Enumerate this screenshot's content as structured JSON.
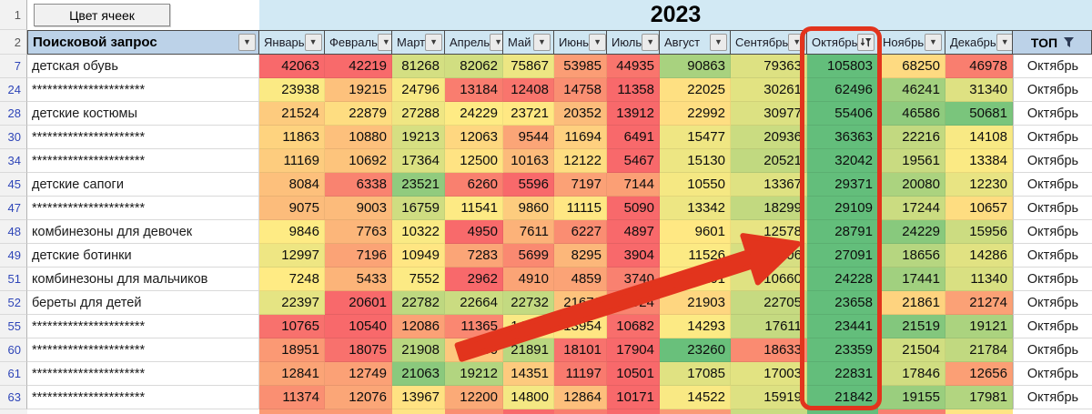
{
  "toolbar": {
    "button_label": "Цвет ячеек"
  },
  "banner": {
    "year": "2023"
  },
  "gutter": {
    "row1": "1",
    "row2": "2"
  },
  "table": {
    "query_header": "Поисковой запрос",
    "months": [
      "Январь",
      "Февраль",
      "Март",
      "Апрель",
      "Май",
      "Июнь",
      "Июль",
      "Август",
      "Сентябрь",
      "Октябрь",
      "Ноябрь",
      "Декабрь"
    ],
    "top_header": "ТОП",
    "filtered_column": "Октябрь",
    "rows": [
      {
        "num": "7",
        "query": "детская обувь",
        "values": [
          42063,
          42219,
          81268,
          82062,
          75867,
          53985,
          44935,
          90863,
          79363,
          105803,
          68250,
          46978
        ],
        "top": "Октябрь"
      },
      {
        "num": "24",
        "query": "**********************",
        "values": [
          23938,
          19215,
          24796,
          13184,
          12408,
          14758,
          11358,
          22025,
          30261,
          62496,
          46241,
          31340
        ],
        "top": "Октябрь"
      },
      {
        "num": "28",
        "query": "детские костюмы",
        "values": [
          21524,
          22879,
          27288,
          24229,
          23721,
          20352,
          13912,
          22992,
          30977,
          55406,
          46586,
          50681
        ],
        "top": "Октябрь"
      },
      {
        "num": "30",
        "query": "**********************",
        "values": [
          11863,
          10880,
          19213,
          12063,
          9544,
          11694,
          6491,
          15477,
          20936,
          36363,
          22216,
          14108
        ],
        "top": "Октябрь"
      },
      {
        "num": "34",
        "query": "**********************",
        "values": [
          11169,
          10692,
          17364,
          12500,
          10163,
          12122,
          5467,
          15130,
          20521,
          32042,
          19561,
          13384
        ],
        "top": "Октябрь"
      },
      {
        "num": "45",
        "query": "детские сапоги",
        "values": [
          8084,
          6338,
          23521,
          6260,
          5596,
          7197,
          7144,
          10550,
          13367,
          29371,
          20080,
          12230
        ],
        "top": "Октябрь"
      },
      {
        "num": "47",
        "query": "**********************",
        "values": [
          9075,
          9003,
          16759,
          11541,
          9860,
          11115,
          5090,
          13342,
          18299,
          29109,
          17244,
          10657
        ],
        "top": "Октябрь"
      },
      {
        "num": "48",
        "query": "комбинезоны для девочек",
        "values": [
          9846,
          7763,
          10322,
          4950,
          7611,
          6227,
          4897,
          9601,
          12578,
          28791,
          24229,
          15956
        ],
        "top": "Октябрь"
      },
      {
        "num": "49",
        "query": "детские ботинки",
        "values": [
          12997,
          7196,
          10949,
          7283,
          5699,
          8295,
          3904,
          11526,
          15306,
          27091,
          18656,
          14286
        ],
        "top": "Октябрь"
      },
      {
        "num": "51",
        "query": "комбинезоны для мальчиков",
        "values": [
          7248,
          5433,
          7552,
          2962,
          4910,
          4859,
          3740,
          7201,
          10660,
          24228,
          17441,
          11340
        ],
        "top": "Октябрь"
      },
      {
        "num": "52",
        "query": "береты для детей",
        "values": [
          22397,
          20601,
          22782,
          22664,
          22732,
          21670,
          20924,
          21903,
          22705,
          23658,
          21861,
          21274
        ],
        "top": "Октябрь"
      },
      {
        "num": "55",
        "query": "**********************",
        "values": [
          10765,
          10540,
          12086,
          11365,
          14450,
          13954,
          10682,
          14293,
          17611,
          23441,
          21519,
          19121
        ],
        "top": "Октябрь"
      },
      {
        "num": "60",
        "query": "**********************",
        "values": [
          18951,
          18075,
          21908,
          19960,
          21891,
          18101,
          17904,
          23260,
          18633,
          23359,
          21504,
          21784
        ],
        "top": "Октябрь"
      },
      {
        "num": "61",
        "query": "**********************",
        "values": [
          12841,
          12749,
          21063,
          19212,
          14351,
          11197,
          10501,
          17085,
          17003,
          22831,
          17846,
          12656
        ],
        "top": "Октябрь"
      },
      {
        "num": "63",
        "query": "**********************",
        "values": [
          11374,
          12076,
          13967,
          12200,
          14800,
          12864,
          10171,
          14522,
          15919,
          21842,
          19155,
          17981
        ],
        "top": "Октябрь"
      }
    ],
    "bottom_partial_row_colors": [
      "#fb9a74",
      "#fb9a74",
      "#ffe483",
      "#fa8e71",
      "#f8696b",
      "#f97d6e",
      "#f8696b",
      "#fa9a75",
      "#c9dc81",
      "#63be7b",
      "#f87f70",
      "#ffe583"
    ]
  },
  "colors": {
    "heat_low": "#F8696B",
    "heat_mid": "#FFEB84",
    "heat_high": "#63BE7B",
    "annotation_red": "#E2341D",
    "month_header_blue": "#CFE6F2",
    "title_banner_blue": "#D2E9F4",
    "bold_header_blue": "#BCD2E8"
  }
}
